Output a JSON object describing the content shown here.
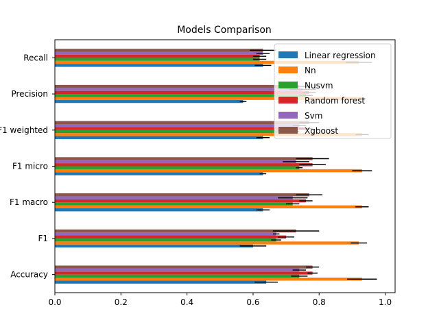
{
  "chart_data": {
    "type": "bar",
    "orientation": "horizontal",
    "title": "Models Comparison",
    "xlabel": "",
    "ylabel": "",
    "xlim": [
      0,
      1.03
    ],
    "xticks": [
      0.0,
      0.2,
      0.4,
      0.6,
      0.8,
      1.0
    ],
    "xtick_labels": [
      "0.0",
      "0.2",
      "0.4",
      "0.6",
      "0.8",
      "1.0"
    ],
    "categories": [
      "Accuracy",
      "F1",
      "F1 macro",
      "F1 micro",
      "F1 weighted",
      "Precision",
      "Recall"
    ],
    "category_labels": [
      "Accuracy",
      "F1",
      "F1 macro",
      "F1 micro",
      "F1 weighted",
      "Precision",
      "Recall"
    ],
    "grid": false,
    "legend_position": "top-right",
    "series": [
      {
        "name": "Linear regression",
        "color": "#1f77b4",
        "values": [
          0.64,
          0.6,
          0.63,
          0.63,
          0.63,
          0.57,
          0.63
        ],
        "errors": [
          0.035,
          0.04,
          0.02,
          0.01,
          0.02,
          0.01,
          0.025
        ]
      },
      {
        "name": "Nn",
        "color": "#ff7f0e",
        "values": [
          0.93,
          0.92,
          0.93,
          0.93,
          0.93,
          0.93,
          0.92
        ],
        "errors": [
          0.045,
          0.025,
          0.02,
          0.03,
          0.02,
          0.01,
          0.04
        ]
      },
      {
        "name": "Nusvm",
        "color": "#2ca02c",
        "values": [
          0.74,
          0.67,
          0.72,
          0.74,
          0.73,
          0.76,
          0.62
        ],
        "errors": [
          0.025,
          0.015,
          0.02,
          0.01,
          0.01,
          0.02,
          0.02
        ]
      },
      {
        "name": "Random forest",
        "color": "#d62728",
        "values": [
          0.78,
          0.7,
          0.76,
          0.78,
          0.76,
          0.77,
          0.62
        ],
        "errors": [
          0.015,
          0.025,
          0.02,
          0.04,
          0.02,
          0.02,
          0.02
        ]
      },
      {
        "name": "Svm",
        "color": "#9467bd",
        "values": [
          0.74,
          0.67,
          0.72,
          0.73,
          0.74,
          0.75,
          0.63
        ],
        "errors": [
          0.02,
          0.01,
          0.045,
          0.04,
          0.02,
          0.04,
          0.02
        ]
      },
      {
        "name": "Xgboost",
        "color": "#8c564b",
        "values": [
          0.78,
          0.73,
          0.77,
          0.78,
          0.77,
          0.74,
          0.63
        ],
        "errors": [
          0.02,
          0.07,
          0.04,
          0.05,
          0.03,
          0.03,
          0.04
        ]
      }
    ]
  }
}
